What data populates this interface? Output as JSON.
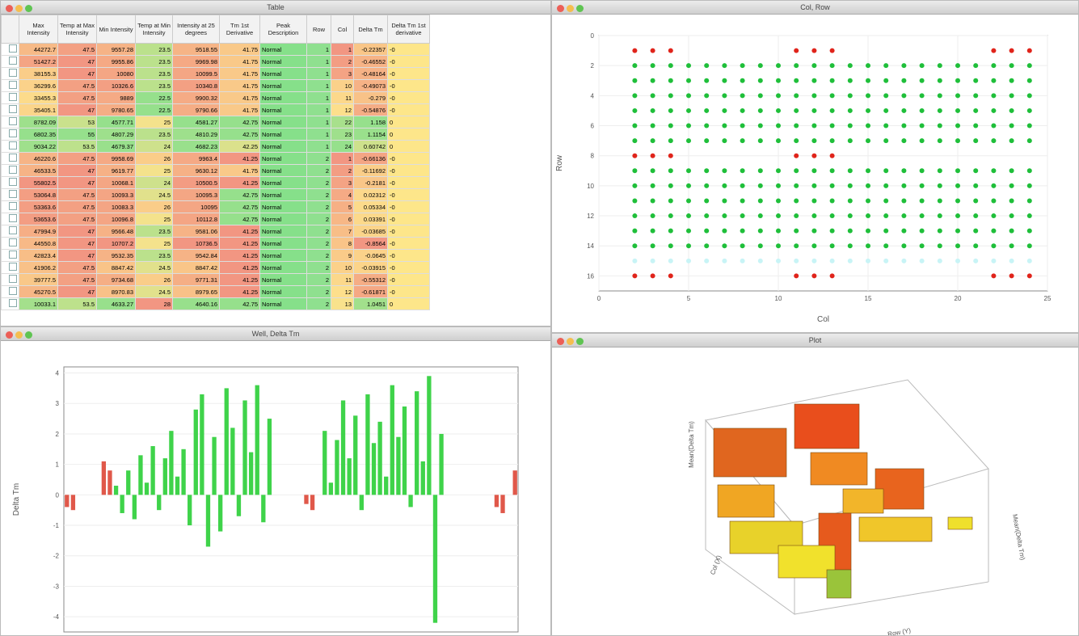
{
  "windows": {
    "table": "Table",
    "scatter": "Col, Row",
    "bars": "Well, Delta Tm",
    "plot": "Plot"
  },
  "table": {
    "headers": [
      "Max Intensity",
      "Temp at Max Intensity",
      "Min Intensity",
      "Temp at Min Intensity",
      "Intensity at 25 degrees",
      "Tm 1st Derivative",
      "Peak Description",
      "Row",
      "Col",
      "Delta Tm",
      "Delta Tm 1st derivative"
    ],
    "rows": [
      [
        44272.7,
        47.5,
        9557.28,
        23.5,
        9518.55,
        41.75,
        "Normal",
        1,
        1,
        -0.22357,
        "-0"
      ],
      [
        51427.2,
        47,
        9955.86,
        23.5,
        9969.98,
        41.75,
        "Normal",
        1,
        2,
        -0.46552,
        "-0"
      ],
      [
        38155.3,
        47,
        10080,
        23.5,
        10099.5,
        41.75,
        "Normal",
        1,
        3,
        -0.48164,
        "-0"
      ],
      [
        36299.6,
        47.5,
        10326.6,
        23.5,
        10340.8,
        41.75,
        "Normal",
        1,
        10,
        -0.49073,
        "-0"
      ],
      [
        33455.3,
        47.5,
        9889,
        22.5,
        9900.32,
        41.75,
        "Normal",
        1,
        11,
        -0.279,
        "-0"
      ],
      [
        35405.1,
        47,
        9780.65,
        22.5,
        9790.66,
        41.75,
        "Normal",
        1,
        12,
        -0.54876,
        "-0"
      ],
      [
        8782.09,
        53,
        4577.71,
        25,
        4581.27,
        42.75,
        "Normal",
        1,
        22,
        1.158,
        "0"
      ],
      [
        6802.35,
        55,
        4807.29,
        23.5,
        4810.29,
        42.75,
        "Normal",
        1,
        23,
        1.1154,
        "0"
      ],
      [
        9034.22,
        53.5,
        4679.37,
        24,
        4682.23,
        42.25,
        "Normal",
        1,
        24,
        0.60742,
        "0"
      ],
      [
        46220.6,
        47.5,
        9958.69,
        26,
        9963.4,
        41.25,
        "Normal",
        2,
        1,
        -0.66136,
        "-0"
      ],
      [
        46533.5,
        47,
        9619.77,
        25,
        9630.12,
        41.75,
        "Normal",
        2,
        2,
        -0.11692,
        "-0"
      ],
      [
        55802.5,
        47,
        10068.1,
        24,
        10500.5,
        41.25,
        "Normal",
        2,
        3,
        -0.2181,
        "-0"
      ],
      [
        53064.8,
        47.5,
        10093.3,
        24.5,
        10095.3,
        42.75,
        "Normal",
        2,
        4,
        0.02312,
        "-0"
      ],
      [
        53363.6,
        47.5,
        10083.3,
        26,
        10095,
        42.75,
        "Normal",
        2,
        5,
        0.05334,
        "-0"
      ],
      [
        53653.6,
        47.5,
        10096.8,
        25,
        10112.8,
        42.75,
        "Normal",
        2,
        6,
        0.03391,
        "-0"
      ],
      [
        47994.9,
        47,
        9566.48,
        23.5,
        9581.06,
        41.25,
        "Normal",
        2,
        7,
        -0.03685,
        "-0"
      ],
      [
        44550.8,
        47,
        10707.2,
        25,
        10736.5,
        41.25,
        "Normal",
        2,
        8,
        -0.8564,
        "-0"
      ],
      [
        42823.4,
        47,
        9532.35,
        23.5,
        9542.84,
        41.25,
        "Normal",
        2,
        9,
        -0.0645,
        "-0"
      ],
      [
        41906.2,
        47.5,
        8847.42,
        24.5,
        8847.42,
        41.25,
        "Normal",
        2,
        10,
        -0.03915,
        "-0"
      ],
      [
        39777.5,
        47.5,
        9734.68,
        26,
        9771.31,
        41.25,
        "Normal",
        2,
        11,
        -0.55312,
        "-0"
      ],
      [
        45270.5,
        47,
        8970.83,
        24.5,
        8979.65,
        41.25,
        "Normal",
        2,
        12,
        -0.61871,
        "-0"
      ],
      [
        10033.1,
        53.5,
        4633.27,
        28,
        4640.16,
        42.75,
        "Normal",
        2,
        13,
        1.0451,
        "0"
      ]
    ]
  },
  "chart_data": [
    {
      "type": "scatter",
      "xlabel": "Col",
      "ylabel": "Row",
      "xlim": [
        0,
        25
      ],
      "ylim": [
        17,
        0
      ],
      "xticks": [
        0,
        5,
        10,
        15,
        20,
        25
      ],
      "yticks": [
        0,
        2,
        4,
        6,
        8,
        10,
        12,
        14,
        16
      ],
      "grid": true,
      "series": [
        {
          "color": "#e0241b",
          "row": 1,
          "cols": [
            2,
            3,
            4,
            11,
            12,
            13,
            22,
            23,
            24
          ]
        },
        {
          "color": "#e0241b",
          "row": 8,
          "cols": [
            2,
            3,
            4,
            11,
            12,
            13
          ]
        },
        {
          "color": "#e0241b",
          "row": 16,
          "cols": [
            2,
            3,
            4,
            11,
            12,
            13,
            22,
            23,
            24
          ]
        },
        {
          "color": "#1fbf3a",
          "row": 2,
          "cols": [
            2,
            3,
            4,
            5,
            6,
            7,
            8,
            9,
            10,
            11,
            12,
            13,
            14,
            15,
            16,
            17,
            18,
            19,
            20,
            21,
            22,
            23,
            24
          ]
        },
        {
          "color": "#1fbf3a",
          "row": 3,
          "cols": [
            2,
            3,
            4,
            5,
            6,
            7,
            8,
            9,
            10,
            11,
            12,
            13,
            14,
            15,
            16,
            17,
            18,
            19,
            20,
            21,
            22,
            23,
            24
          ]
        },
        {
          "color": "#1fbf3a",
          "row": 4,
          "cols": [
            2,
            3,
            4,
            5,
            6,
            7,
            8,
            9,
            10,
            11,
            12,
            13,
            14,
            15,
            16,
            17,
            18,
            19,
            20,
            21,
            22,
            23,
            24
          ]
        },
        {
          "color": "#1fbf3a",
          "row": 5,
          "cols": [
            2,
            3,
            4,
            5,
            6,
            7,
            8,
            9,
            10,
            11,
            12,
            13,
            14,
            15,
            16,
            17,
            18,
            19,
            20,
            21,
            22,
            23,
            24
          ]
        },
        {
          "color": "#1fbf3a",
          "row": 6,
          "cols": [
            2,
            3,
            4,
            5,
            6,
            7,
            8,
            9,
            10,
            11,
            12,
            13,
            14,
            15,
            16,
            17,
            18,
            19,
            20,
            21,
            22,
            23,
            24
          ]
        },
        {
          "color": "#1fbf3a",
          "row": 7,
          "cols": [
            2,
            3,
            4,
            5,
            6,
            7,
            8,
            9,
            10,
            11,
            12,
            13,
            14,
            15,
            16,
            17,
            18,
            19,
            20,
            21,
            22,
            23,
            24
          ]
        },
        {
          "color": "#1fbf3a",
          "row": 9,
          "cols": [
            2,
            3,
            4,
            5,
            6,
            7,
            8,
            9,
            10,
            11,
            12,
            13,
            14,
            15,
            16,
            17,
            18,
            19,
            20,
            21,
            22,
            23,
            24
          ]
        },
        {
          "color": "#1fbf3a",
          "row": 10,
          "cols": [
            2,
            3,
            4,
            5,
            6,
            7,
            8,
            9,
            10,
            11,
            12,
            13,
            14,
            15,
            16,
            17,
            18,
            19,
            20,
            21,
            22,
            23,
            24
          ]
        },
        {
          "color": "#1fbf3a",
          "row": 11,
          "cols": [
            2,
            3,
            4,
            5,
            6,
            7,
            8,
            9,
            10,
            11,
            12,
            13,
            14,
            15,
            16,
            17,
            18,
            19,
            20,
            21,
            22,
            23,
            24
          ]
        },
        {
          "color": "#1fbf3a",
          "row": 12,
          "cols": [
            2,
            3,
            4,
            5,
            6,
            7,
            8,
            9,
            10,
            11,
            12,
            13,
            14,
            15,
            16,
            17,
            18,
            19,
            20,
            21,
            22,
            23,
            24
          ]
        },
        {
          "color": "#1fbf3a",
          "row": 13,
          "cols": [
            2,
            3,
            4,
            5,
            6,
            7,
            8,
            9,
            10,
            11,
            12,
            13,
            14,
            15,
            16,
            17,
            18,
            19,
            20,
            21,
            22,
            23,
            24
          ]
        },
        {
          "color": "#1fbf3a",
          "row": 14,
          "cols": [
            2,
            3,
            4,
            5,
            6,
            7,
            8,
            9,
            10,
            11,
            12,
            13,
            14,
            15,
            16,
            17,
            18,
            19,
            20,
            21,
            22,
            23,
            24
          ]
        },
        {
          "color": "#c8f4f6",
          "row": 15,
          "cols": [
            2,
            3,
            4,
            5,
            6,
            7,
            8,
            9,
            10,
            11,
            12,
            13,
            14,
            15,
            16,
            17,
            18,
            19,
            20,
            21,
            22,
            23,
            24
          ]
        }
      ]
    },
    {
      "type": "bar",
      "ylabel": "Delta Tm",
      "ylim": [
        -4.5,
        4.2
      ],
      "yticks": [
        -4,
        -3,
        -2,
        -1,
        0,
        1,
        2,
        3,
        4
      ],
      "grid": true,
      "series": [
        {
          "color": "#e0584a",
          "values": [
            -0.4,
            -0.5,
            null,
            null,
            null,
            null,
            1.1,
            0.8,
            null,
            null,
            null,
            null,
            null,
            null,
            null,
            null,
            null,
            null,
            null,
            null,
            null,
            null,
            null,
            null,
            null,
            null,
            null,
            null,
            null,
            null,
            null,
            null,
            null,
            null,
            null,
            null,
            null,
            null,
            null,
            -0.3,
            -0.5,
            null,
            null,
            null,
            null,
            null,
            null,
            null,
            null,
            null,
            null,
            null,
            null,
            null,
            null,
            null,
            null,
            null,
            null,
            null,
            null,
            null,
            null,
            null,
            null,
            null,
            null,
            null,
            null,
            null,
            -0.4,
            -0.6,
            null,
            0.8
          ]
        },
        {
          "color": "#3fd34a",
          "values": [
            null,
            null,
            null,
            null,
            null,
            null,
            null,
            null,
            0.3,
            -0.6,
            0.8,
            -0.8,
            1.3,
            0.4,
            1.6,
            -0.5,
            1.2,
            2.1,
            0.6,
            1.5,
            -1.0,
            2.8,
            3.3,
            -1.7,
            1.9,
            -1.2,
            3.5,
            2.2,
            -0.7,
            3.1,
            1.4,
            3.6,
            -0.9,
            2.5,
            null,
            null,
            null,
            null,
            null,
            null,
            null,
            null,
            2.1,
            0.4,
            1.8,
            3.1,
            1.2,
            2.6,
            -0.5,
            3.3,
            1.7,
            2.4,
            0.6,
            3.6,
            1.9,
            2.9,
            -0.4,
            3.4,
            1.1,
            3.9,
            -4.2,
            2.0,
            null,
            null,
            null,
            null,
            null,
            null,
            null,
            null,
            null,
            null,
            null,
            null
          ]
        }
      ]
    }
  ],
  "plot": {
    "zlabel": "Mean(Delta Tm)",
    "xlabel": "Col (X)",
    "ylabel": "Row (Y)",
    "zlabel2": "Mean(Delta Tm)"
  }
}
